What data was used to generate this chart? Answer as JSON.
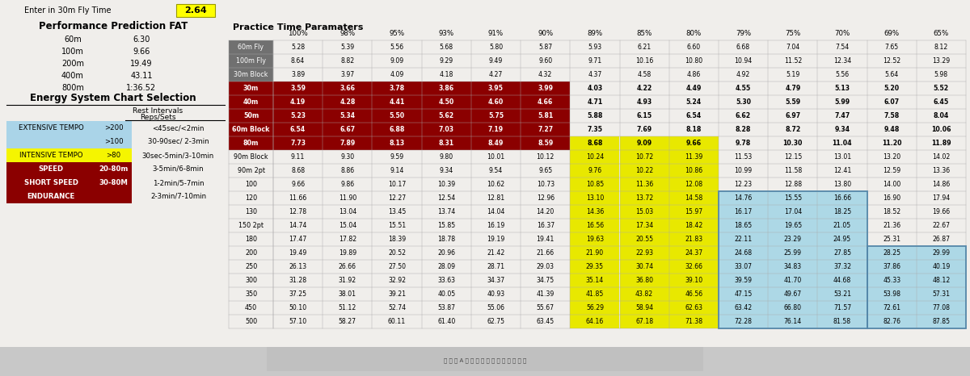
{
  "enter_fly_time": "2.64",
  "performance_prediction": {
    "label": "Performance Prediction FAT",
    "rows": [
      [
        "60m",
        "6.30"
      ],
      [
        "100m",
        "9.66"
      ],
      [
        "200m",
        "19.49"
      ],
      [
        "400m",
        "43.11"
      ],
      [
        "800m",
        "1:36.52"
      ]
    ]
  },
  "energy_system_title": "Energy System Chart Selection",
  "energy_system_rows": [
    {
      "label": "EXTENSIVE TEMPO",
      "col2": ">200",
      "col3": "<45sec/<2min",
      "bg": "#aad4e8",
      "text": "black"
    },
    {
      "label": "",
      "col2": ">100",
      "col3": "30-90sec/ 2-3min",
      "bg": "#aad4e8",
      "text": "black"
    },
    {
      "label": "INTENSIVE TEMPO",
      "col2": ">80",
      "col3": "30sec-5min/3-10min",
      "bg": "#f5f500",
      "text": "black"
    },
    {
      "label": "SPEED",
      "col2": "20-80m",
      "col3": "3-5min/6-8min",
      "bg": "#8b0000",
      "text": "white"
    },
    {
      "label": "SHORT SPEED",
      "col2": "30-80M",
      "col3": "1-2min/5-7min",
      "bg": "#8b0000",
      "text": "white"
    },
    {
      "label": "ENDURANCE",
      "col2": "",
      "col3": "2-3min/7-10min",
      "bg": "#8b0000",
      "text": "white"
    }
  ],
  "practice_title": "Practice Time Paramaters",
  "percentages": [
    "100%",
    "98%",
    "95%",
    "93%",
    "91%",
    "90%",
    "89%",
    "85%",
    "80%",
    "79%",
    "75%",
    "70%",
    "69%",
    "65%"
  ],
  "table_rows": [
    {
      "label": "60m Fly",
      "lbg": "#707070",
      "ltc": "white",
      "bold": false,
      "values": [
        5.28,
        5.39,
        5.56,
        5.68,
        5.8,
        5.87,
        5.93,
        6.21,
        6.6,
        6.68,
        7.04,
        7.54,
        7.65,
        8.12
      ]
    },
    {
      "label": "100m Fly",
      "lbg": "#707070",
      "ltc": "white",
      "bold": false,
      "values": [
        8.64,
        8.82,
        9.09,
        9.29,
        9.49,
        9.6,
        9.71,
        10.16,
        10.8,
        10.94,
        11.52,
        12.34,
        12.52,
        13.29
      ]
    },
    {
      "label": "30m Block",
      "lbg": "#707070",
      "ltc": "white",
      "bold": false,
      "values": [
        3.89,
        3.97,
        4.09,
        4.18,
        4.27,
        4.32,
        4.37,
        4.58,
        4.86,
        4.92,
        5.19,
        5.56,
        5.64,
        5.98
      ]
    },
    {
      "label": "30m",
      "lbg": "#8b0000",
      "ltc": "white",
      "bold": true,
      "values": [
        3.59,
        3.66,
        3.78,
        3.86,
        3.95,
        3.99,
        4.03,
        4.22,
        4.49,
        4.55,
        4.79,
        5.13,
        5.2,
        5.52
      ]
    },
    {
      "label": "40m",
      "lbg": "#8b0000",
      "ltc": "white",
      "bold": true,
      "values": [
        4.19,
        4.28,
        4.41,
        4.5,
        4.6,
        4.66,
        4.71,
        4.93,
        5.24,
        5.3,
        5.59,
        5.99,
        6.07,
        6.45
      ]
    },
    {
      "label": "50m",
      "lbg": "#8b0000",
      "ltc": "white",
      "bold": true,
      "values": [
        5.23,
        5.34,
        5.5,
        5.62,
        5.75,
        5.81,
        5.88,
        6.15,
        6.54,
        6.62,
        6.97,
        7.47,
        7.58,
        8.04
      ]
    },
    {
      "label": "60m Block",
      "lbg": "#8b0000",
      "ltc": "white",
      "bold": true,
      "values": [
        6.54,
        6.67,
        6.88,
        7.03,
        7.19,
        7.27,
        7.35,
        7.69,
        8.18,
        8.28,
        8.72,
        9.34,
        9.48,
        10.06
      ]
    },
    {
      "label": "80m",
      "lbg": "#8b0000",
      "ltc": "white",
      "bold": true,
      "values": [
        7.73,
        7.89,
        8.13,
        8.31,
        8.49,
        8.59,
        8.68,
        9.09,
        9.66,
        9.78,
        10.3,
        11.04,
        11.2,
        11.89
      ]
    },
    {
      "label": "90m Block",
      "lbg": null,
      "ltc": "black",
      "bold": false,
      "values": [
        9.11,
        9.3,
        9.59,
        9.8,
        10.01,
        10.12,
        10.24,
        10.72,
        11.39,
        11.53,
        12.15,
        13.01,
        13.2,
        14.02
      ]
    },
    {
      "label": "90m 2pt",
      "lbg": null,
      "ltc": "black",
      "bold": false,
      "values": [
        8.68,
        8.86,
        9.14,
        9.34,
        9.54,
        9.65,
        9.76,
        10.22,
        10.86,
        10.99,
        11.58,
        12.41,
        12.59,
        13.36
      ]
    },
    {
      "label": "100",
      "lbg": null,
      "ltc": "black",
      "bold": false,
      "values": [
        9.66,
        9.86,
        10.17,
        10.39,
        10.62,
        10.73,
        10.85,
        11.36,
        12.08,
        12.23,
        12.88,
        13.8,
        14.0,
        14.86
      ]
    },
    {
      "label": "120",
      "lbg": null,
      "ltc": "black",
      "bold": false,
      "values": [
        11.66,
        11.9,
        12.27,
        12.54,
        12.81,
        12.96,
        13.1,
        13.72,
        14.58,
        14.76,
        15.55,
        16.66,
        16.9,
        17.94
      ]
    },
    {
      "label": "130",
      "lbg": null,
      "ltc": "black",
      "bold": false,
      "values": [
        12.78,
        13.04,
        13.45,
        13.74,
        14.04,
        14.2,
        14.36,
        15.03,
        15.97,
        16.17,
        17.04,
        18.25,
        18.52,
        19.66
      ]
    },
    {
      "label": "150 2pt",
      "lbg": null,
      "ltc": "black",
      "bold": false,
      "values": [
        14.74,
        15.04,
        15.51,
        15.85,
        16.19,
        16.37,
        16.56,
        17.34,
        18.42,
        18.65,
        19.65,
        21.05,
        21.36,
        22.67
      ]
    },
    {
      "label": "180",
      "lbg": null,
      "ltc": "black",
      "bold": false,
      "values": [
        17.47,
        17.82,
        18.39,
        18.78,
        19.19,
        19.41,
        19.63,
        20.55,
        21.83,
        22.11,
        23.29,
        24.95,
        25.31,
        26.87
      ]
    },
    {
      "label": "200",
      "lbg": null,
      "ltc": "black",
      "bold": false,
      "values": [
        19.49,
        19.89,
        20.52,
        20.96,
        21.42,
        21.66,
        21.9,
        22.93,
        24.37,
        24.68,
        25.99,
        27.85,
        28.25,
        29.99
      ]
    },
    {
      "label": "250",
      "lbg": null,
      "ltc": "black",
      "bold": false,
      "values": [
        26.13,
        26.66,
        27.5,
        28.09,
        28.71,
        29.03,
        29.35,
        30.74,
        32.66,
        33.07,
        34.83,
        37.32,
        37.86,
        40.19
      ]
    },
    {
      "label": "300",
      "lbg": null,
      "ltc": "black",
      "bold": false,
      "values": [
        31.28,
        31.92,
        32.92,
        33.63,
        34.37,
        34.75,
        35.14,
        36.8,
        39.1,
        39.59,
        41.7,
        44.68,
        45.33,
        48.12
      ]
    },
    {
      "label": "350",
      "lbg": null,
      "ltc": "black",
      "bold": false,
      "values": [
        37.25,
        38.01,
        39.21,
        40.05,
        40.93,
        41.39,
        41.85,
        43.82,
        46.56,
        47.15,
        49.67,
        53.21,
        53.98,
        57.31
      ]
    },
    {
      "label": "450",
      "lbg": null,
      "ltc": "black",
      "bold": false,
      "values": [
        50.1,
        51.12,
        52.74,
        53.87,
        55.06,
        55.67,
        56.29,
        58.94,
        62.63,
        63.42,
        66.8,
        71.57,
        72.61,
        77.08
      ]
    },
    {
      "label": "500",
      "lbg": null,
      "ltc": "black",
      "bold": false,
      "values": [
        57.1,
        58.27,
        60.11,
        61.4,
        62.75,
        63.45,
        64.16,
        67.18,
        71.38,
        72.28,
        76.14,
        81.58,
        82.76,
        87.85
      ]
    }
  ],
  "bg_color": "#c8c8c8",
  "white_panel": "#f0eeeb",
  "table_white": "#f0eeeb",
  "darkred": "#8b0000",
  "yellow": "#e8e800",
  "lightblue": "#add8e6",
  "gray_label": "#707070"
}
